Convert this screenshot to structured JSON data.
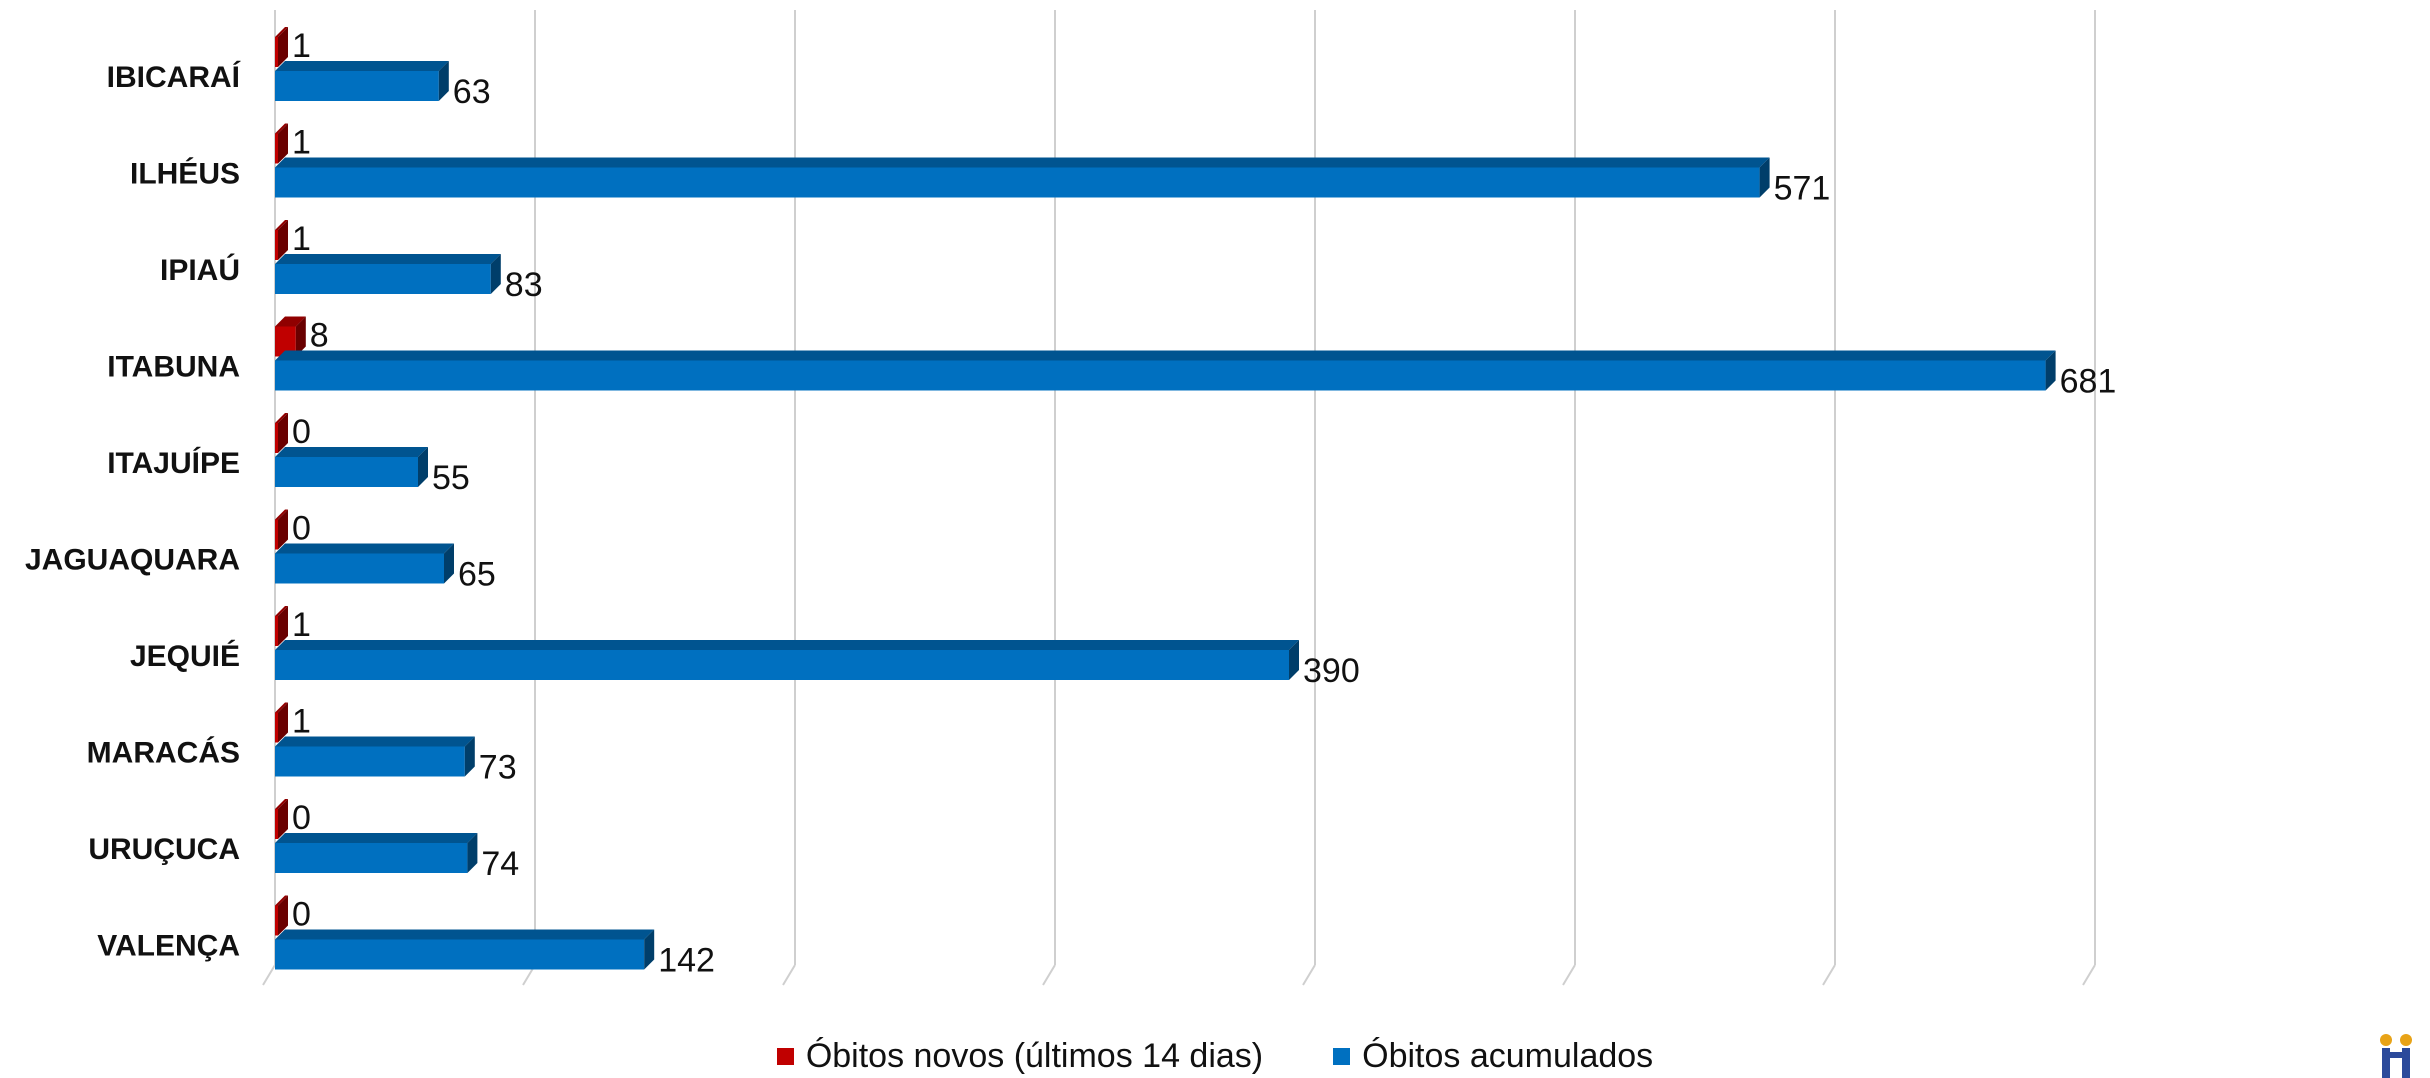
{
  "chart_data": {
    "type": "bar",
    "orientation": "horizontal",
    "categories": [
      "IBICARAÍ",
      "ILHÉUS",
      "IPIAÚ",
      "ITABUNA",
      "ITAJUÍPE",
      "JAGUAQUARA",
      "JEQUIÉ",
      "MARACÁS",
      "URUÇUCA",
      "VALENÇA"
    ],
    "series": [
      {
        "name": "Óbitos novos (últimos 14 dias)",
        "color": "#c00000",
        "values": [
          1,
          1,
          1,
          8,
          0,
          0,
          1,
          1,
          0,
          0
        ]
      },
      {
        "name": "Óbitos acumulados",
        "color": "#0070c0",
        "values": [
          63,
          571,
          83,
          681,
          55,
          65,
          390,
          73,
          74,
          142
        ]
      }
    ],
    "xlim": [
      0,
      700
    ],
    "grid": true,
    "legend_position": "bottom-center",
    "style": "3d"
  }
}
